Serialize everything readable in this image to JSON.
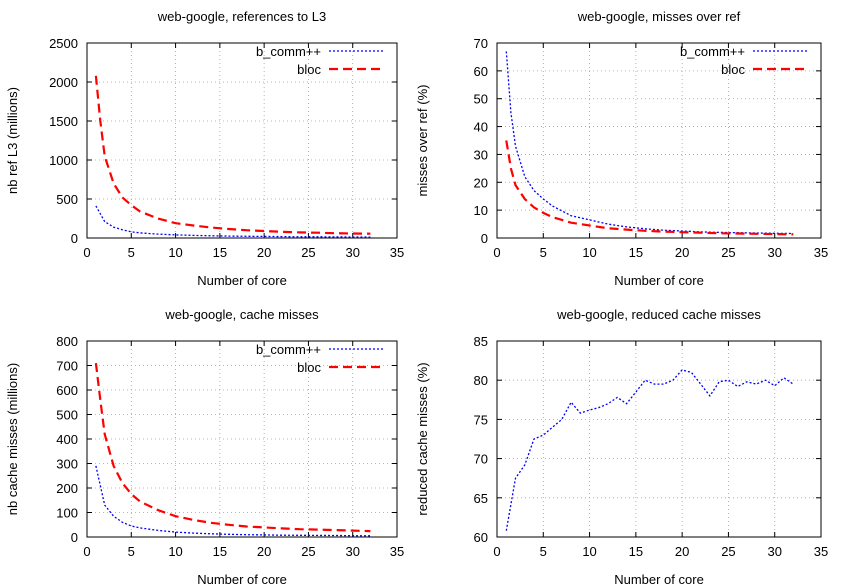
{
  "chart_data": [
    {
      "type": "line",
      "title": "web-google, references to L3",
      "xlabel": "Number of core",
      "ylabel": "nb ref L3 (millions)",
      "xlim": [
        0,
        35
      ],
      "ylim": [
        0,
        2500
      ],
      "xticks": [
        0,
        5,
        10,
        15,
        20,
        25,
        30,
        35
      ],
      "yticks": [
        0,
        500,
        1000,
        1500,
        2000,
        2500
      ],
      "grid": true,
      "legend": "top-right",
      "series": [
        {
          "name": "b_comm++",
          "color": "#0000ff",
          "dash": "dotted",
          "x": [
            1,
            2,
            3,
            4,
            5,
            6,
            8,
            10,
            12,
            14,
            16,
            18,
            20,
            22,
            24,
            26,
            28,
            30,
            32
          ],
          "y": [
            410,
            210,
            140,
            105,
            80,
            65,
            50,
            40,
            33,
            28,
            25,
            22,
            20,
            18,
            16,
            15,
            14,
            13,
            12
          ]
        },
        {
          "name": "bloc",
          "color": "#ff0000",
          "dash": "dashed",
          "x": [
            1,
            1.5,
            2,
            3,
            4,
            5,
            6,
            8,
            10,
            12,
            14,
            16,
            18,
            20,
            22,
            24,
            26,
            28,
            30,
            32
          ],
          "y": [
            2080,
            1500,
            1050,
            700,
            520,
            420,
            340,
            250,
            190,
            160,
            135,
            115,
            100,
            90,
            80,
            72,
            68,
            62,
            58,
            55
          ]
        }
      ]
    },
    {
      "type": "line",
      "title": "web-google, misses over ref",
      "xlabel": "Number of core",
      "ylabel": "misses over ref (%)",
      "xlim": [
        0,
        35
      ],
      "ylim": [
        0,
        70
      ],
      "xticks": [
        0,
        5,
        10,
        15,
        20,
        25,
        30,
        35
      ],
      "yticks": [
        0,
        10,
        20,
        30,
        40,
        50,
        60,
        70
      ],
      "grid": true,
      "legend": "top-right",
      "series": [
        {
          "name": "b_comm++",
          "color": "#0000ff",
          "dash": "dotted",
          "x": [
            1,
            1.5,
            2,
            3,
            4,
            5,
            6,
            8,
            10,
            12,
            14,
            16,
            18,
            20,
            22,
            24,
            26,
            28,
            30,
            32
          ],
          "y": [
            67,
            45,
            33,
            22,
            17,
            14,
            11.5,
            8,
            6.5,
            5,
            4,
            3.3,
            2.8,
            2.5,
            2.2,
            2,
            1.9,
            1.8,
            1.7,
            1.6
          ]
        },
        {
          "name": "bloc",
          "color": "#ff0000",
          "dash": "dashed",
          "x": [
            1,
            1.5,
            2,
            3,
            4,
            5,
            6,
            8,
            10,
            12,
            14,
            16,
            18,
            20,
            22,
            24,
            26,
            28,
            30,
            32
          ],
          "y": [
            35,
            25,
            19,
            14,
            11,
            9,
            7.5,
            5.5,
            4.5,
            3.5,
            3,
            2.6,
            2.3,
            2.1,
            1.9,
            1.7,
            1.6,
            1.5,
            1.4,
            1.3
          ]
        }
      ]
    },
    {
      "type": "line",
      "title": "web-google, cache misses",
      "xlabel": "Number of core",
      "ylabel": "nb cache misses (millions)",
      "xlim": [
        0,
        35
      ],
      "ylim": [
        0,
        800
      ],
      "xticks": [
        0,
        5,
        10,
        15,
        20,
        25,
        30,
        35
      ],
      "yticks": [
        0,
        100,
        200,
        300,
        400,
        500,
        600,
        700,
        800
      ],
      "grid": true,
      "legend": "top-right",
      "series": [
        {
          "name": "b_comm++",
          "color": "#0000ff",
          "dash": "dotted",
          "x": [
            1,
            2,
            3,
            4,
            5,
            6,
            8,
            10,
            12,
            14,
            16,
            18,
            20,
            22,
            24,
            26,
            28,
            30,
            32
          ],
          "y": [
            290,
            130,
            85,
            60,
            45,
            37,
            27,
            20,
            16,
            13,
            11,
            9.5,
            8.5,
            7.5,
            7,
            6.5,
            6,
            5.5,
            5
          ]
        },
        {
          "name": "bloc",
          "color": "#ff0000",
          "dash": "dashed",
          "x": [
            1,
            1.5,
            2,
            3,
            4,
            5,
            6,
            8,
            10,
            12,
            14,
            16,
            18,
            20,
            22,
            24,
            26,
            28,
            30,
            32
          ],
          "y": [
            710,
            560,
            420,
            290,
            220,
            175,
            145,
            110,
            85,
            70,
            58,
            50,
            43,
            39,
            35,
            32,
            30,
            28,
            26,
            24
          ]
        }
      ]
    },
    {
      "type": "line",
      "title": "web-google, reduced cache misses",
      "xlabel": "Number of core",
      "ylabel": "reduced cache misses (%)",
      "xlim": [
        0,
        35
      ],
      "ylim": [
        60,
        85
      ],
      "xticks": [
        0,
        5,
        10,
        15,
        20,
        25,
        30,
        35
      ],
      "yticks": [
        60,
        65,
        70,
        75,
        80,
        85
      ],
      "grid": true,
      "legend": "none",
      "series": [
        {
          "color": "#0000ff",
          "dash": "dotted",
          "x": [
            1,
            2,
            3,
            4,
            5,
            6,
            7,
            8,
            9,
            10,
            11,
            12,
            13,
            14,
            15,
            16,
            17,
            18,
            19,
            20,
            21,
            22,
            23,
            24,
            25,
            26,
            27,
            28,
            29,
            30,
            31,
            32
          ],
          "y": [
            60.8,
            67.5,
            69.2,
            72.5,
            73,
            74,
            75,
            77.2,
            75.8,
            76.2,
            76.5,
            77,
            77.8,
            77,
            78.5,
            80,
            79.5,
            79.5,
            80,
            81.3,
            81,
            79.5,
            78,
            79.8,
            80,
            79.2,
            79.8,
            79.5,
            80,
            79.3,
            80.3,
            79.5
          ]
        }
      ]
    }
  ]
}
